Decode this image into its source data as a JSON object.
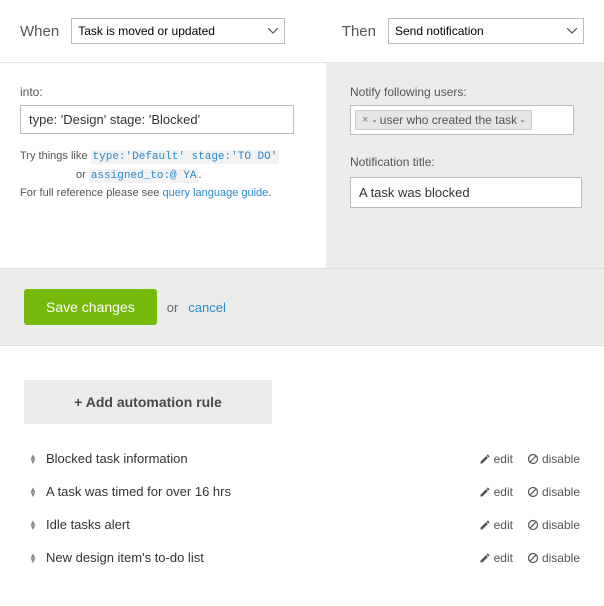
{
  "top": {
    "when_label": "When",
    "when_value": "Task is moved or updated",
    "then_label": "Then",
    "then_value": "Send notification"
  },
  "left": {
    "into_label": "into:",
    "into_value": "type: 'Design' stage: 'Blocked'",
    "hint_prefix": "Try things like ",
    "hint_code1": "type:'Default' stage:'TO DO'",
    "hint_or": "or ",
    "hint_code2": "assigned_to:@ YA",
    "hint_period": ".",
    "hint_ref": "For full reference please see ",
    "hint_link": "query language guide",
    "hint_ref_period": "."
  },
  "right": {
    "notify_label": "Notify following users:",
    "tag_text": "- user who created the task -",
    "title_label": "Notification title:",
    "title_value": "A task was blocked"
  },
  "save": {
    "save_label": "Save changes",
    "or": "or",
    "cancel": "cancel"
  },
  "rules": {
    "add_label": "+ Add automation rule",
    "edit": "edit",
    "disable": "disable",
    "items": [
      "Blocked task information",
      "A task was timed for over 16 hrs",
      "Idle tasks alert",
      "New design item's to-do list"
    ]
  },
  "colors": {
    "accent_green": "#76b90b",
    "link_blue": "#2a8ac9",
    "panel_gray": "#ececec"
  }
}
